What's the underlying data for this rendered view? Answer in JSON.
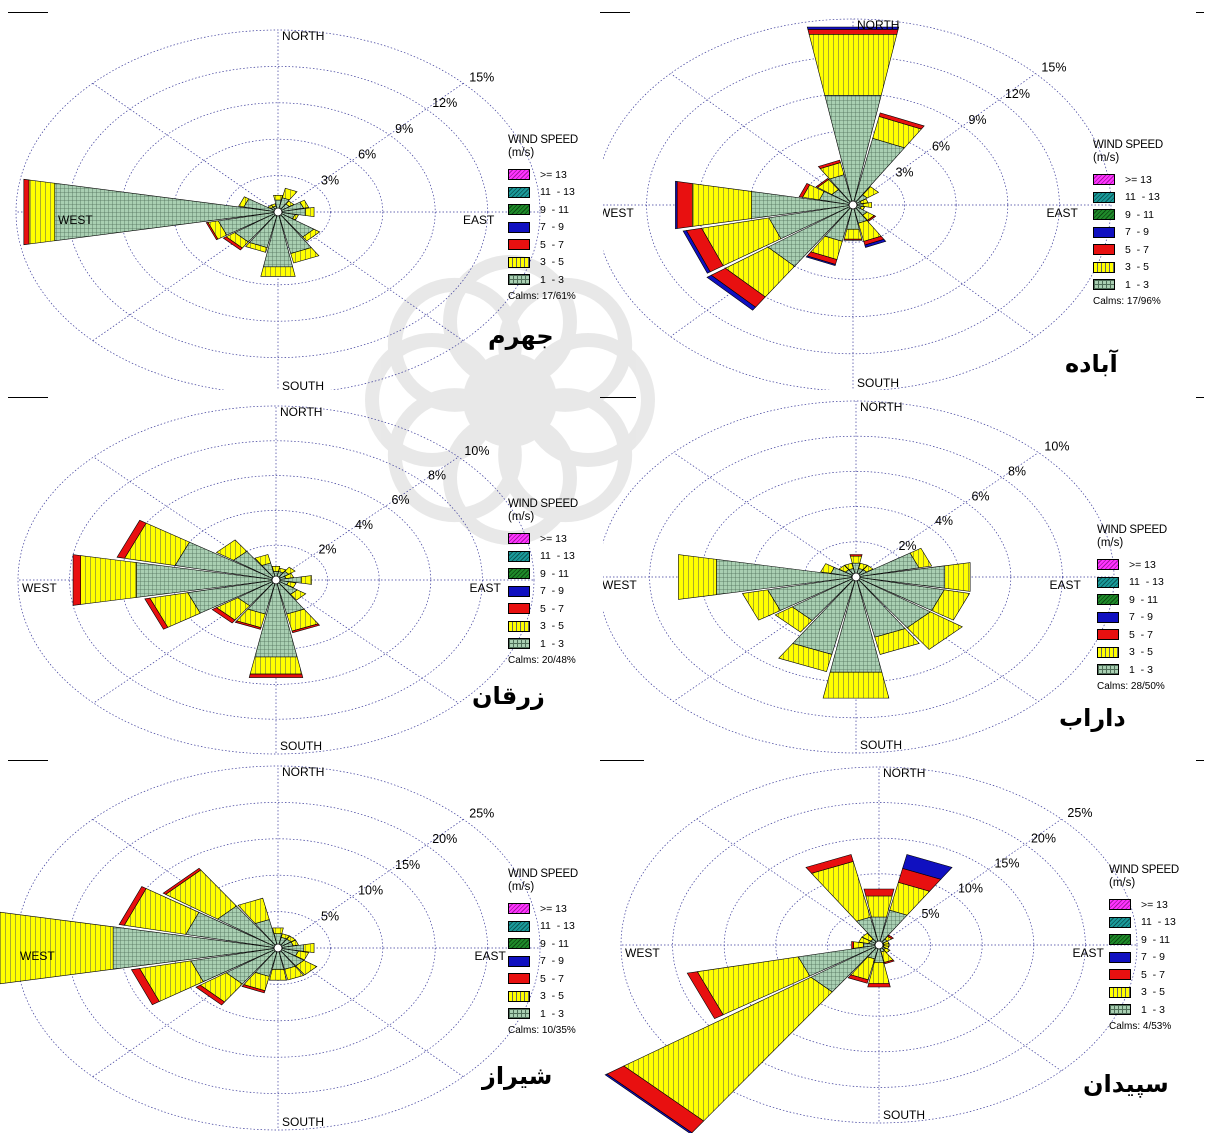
{
  "legend": {
    "title": "WIND SPEED",
    "unit": "(m/s)",
    "bins": [
      {
        "label": ">= 13",
        "color": "#ff33ff",
        "pattern": "diag-magenta"
      },
      {
        "label": "11  - 13",
        "color": "#1a9a9a",
        "pattern": "diag-teal"
      },
      {
        "label": "9  - 11",
        "color": "#1f8a2a",
        "pattern": "diag-green"
      },
      {
        "label": "7  - 9",
        "color": "#1010c0",
        "pattern": "solid-blue"
      },
      {
        "label": "5  - 7",
        "color": "#e81010",
        "pattern": "solid-red"
      },
      {
        "label": "3  - 5",
        "color": "#ffff00",
        "pattern": "vstripe-yellow"
      },
      {
        "label": "1  - 3",
        "color": "#9fc9a9",
        "pattern": "grid-gray"
      }
    ]
  },
  "compass": {
    "north": "NORTH",
    "south": "SOUTH",
    "east": "EAST",
    "west": "WEST"
  },
  "chart_data": [
    {
      "type": "windrose",
      "station": "جهرم",
      "calms": "Calms: 17/61%",
      "ring_labels": [
        "3%",
        "6%",
        "9%",
        "12%",
        "15%"
      ],
      "max_pct": 15,
      "directions": [
        0,
        22.5,
        45,
        67.5,
        90,
        112.5,
        135,
        157.5,
        180,
        202.5,
        225,
        247.5,
        270,
        292.5,
        315,
        337.5
      ],
      "bins": {
        "1-3": [
          1.0,
          1.2,
          0.8,
          1.5,
          1.6,
          1.0,
          2.5,
          3.5,
          4.6,
          3.0,
          3.0,
          3.5,
          13.0,
          2.0,
          0.5,
          0.5
        ],
        "3-5": [
          0.4,
          0.8,
          0.3,
          0.3,
          0.5,
          0.2,
          0.4,
          0.8,
          0.8,
          0.4,
          0.6,
          0.6,
          1.5,
          0.3,
          0.2,
          0.2
        ],
        "5-7": [
          0,
          0,
          0,
          0,
          0,
          0,
          0,
          0,
          0,
          0,
          0.2,
          0.1,
          0.3,
          0,
          0,
          0
        ]
      }
    },
    {
      "type": "windrose",
      "station": "آباده",
      "calms": "Calms: 17/96%",
      "ring_labels": [
        "3%",
        "6%",
        "9%",
        "12%",
        "15%"
      ],
      "max_pct": 15,
      "directions": [
        0,
        22.5,
        45,
        67.5,
        90,
        112.5,
        135,
        157.5,
        180,
        202.5,
        225,
        247.5,
        270,
        292.5,
        315,
        337.5
      ],
      "bins": {
        "1-3": [
          9.0,
          5.5,
          1.0,
          0.5,
          0.6,
          0.5,
          1.0,
          1.5,
          2.0,
          3.0,
          6.0,
          5.0,
          6.0,
          2.0,
          1.5,
          2.5
        ],
        "3-5": [
          5.0,
          1.8,
          0.8,
          0.4,
          0.5,
          0.2,
          0.5,
          1.5,
          0.8,
          1.5,
          3.0,
          4.0,
          3.5,
          1.0,
          1.0,
          1.0
        ],
        "5-7": [
          0.4,
          0.3,
          0,
          0,
          0,
          0,
          0.1,
          0.3,
          0.1,
          0.4,
          1.0,
          0.9,
          0.9,
          0.2,
          0.1,
          0.2
        ],
        "7-9": [
          0.2,
          0,
          0,
          0,
          0,
          0,
          0,
          0.2,
          0,
          0.1,
          0.3,
          0.2,
          0.1,
          0,
          0,
          0
        ]
      }
    },
    {
      "type": "windrose",
      "station": "زرقان",
      "calms": "Calms: 20/48%",
      "ring_labels": [
        "2%",
        "4%",
        "6%",
        "8%",
        "10%"
      ],
      "max_pct": 10,
      "directions": [
        0,
        22.5,
        45,
        67.5,
        90,
        112.5,
        135,
        157.5,
        180,
        202.5,
        225,
        247.5,
        270,
        292.5,
        315,
        337.5
      ],
      "bins": {
        "1-3": [
          0.5,
          0.5,
          0.6,
          0.4,
          1.0,
          0.5,
          1.0,
          2.0,
          4.5,
          2.0,
          1.8,
          3.5,
          5.5,
          4.0,
          2.0,
          1.0
        ],
        "3-5": [
          0.3,
          0.2,
          0.3,
          0.3,
          0.4,
          0.3,
          0.4,
          1.0,
          1.0,
          0.8,
          1.0,
          1.5,
          2.2,
          2.0,
          0.8,
          0.5
        ],
        "5-7": [
          0,
          0,
          0,
          0,
          0,
          0,
          0,
          0.1,
          0.2,
          0.1,
          0.2,
          0.2,
          0.3,
          0.3,
          0,
          0
        ]
      }
    },
    {
      "type": "windrose",
      "station": "داراب",
      "calms": "Calms: 28/50%",
      "ring_labels": [
        "2%",
        "4%",
        "6%",
        "8%",
        "10%"
      ],
      "max_pct": 10,
      "directions": [
        0,
        22.5,
        45,
        67.5,
        90,
        112.5,
        135,
        157.5,
        180,
        202.5,
        225,
        247.5,
        270,
        292.5,
        315,
        337.5
      ],
      "bins": {
        "1-3": [
          0.8,
          0.5,
          0.5,
          2.5,
          3.5,
          3.5,
          3.5,
          3.5,
          5.5,
          4.5,
          3.0,
          3.5,
          5.5,
          1.0,
          0.5,
          0.5
        ],
        "3-5": [
          0.4,
          0.3,
          0.3,
          0.5,
          1.0,
          1.0,
          1.5,
          1.0,
          1.5,
          1.0,
          0.8,
          1.0,
          1.5,
          0.4,
          0.3,
          0.3
        ],
        "5-7": [
          0.1,
          0,
          0,
          0,
          0,
          0,
          0,
          0,
          0,
          0,
          0,
          0,
          0,
          0,
          0,
          0
        ]
      }
    },
    {
      "type": "windrose",
      "station": "شیراز",
      "calms": "Calms: 10/35%",
      "ring_labels": [
        "5%",
        "10%",
        "15%",
        "20%",
        "25%"
      ],
      "max_pct": 25,
      "directions": [
        0,
        22.5,
        45,
        67.5,
        90,
        112.5,
        135,
        157.5,
        180,
        202.5,
        225,
        247.5,
        270,
        292.5,
        315,
        337.5
      ],
      "bins": {
        "1-3": [
          2.0,
          1.5,
          1.5,
          1.5,
          2.5,
          2.0,
          3.0,
          3.0,
          3.0,
          4.0,
          6.0,
          8.5,
          16.0,
          9.0,
          7.0,
          4.0
        ],
        "3-5": [
          0.8,
          0.5,
          0.5,
          0.5,
          1.0,
          1.0,
          1.5,
          1.5,
          1.5,
          2.0,
          3.0,
          5.0,
          11.0,
          6.0,
          6.0,
          3.0
        ],
        "5-7": [
          0,
          0,
          0,
          0,
          0,
          0,
          0,
          0,
          0,
          0.3,
          0.5,
          0.8,
          2.0,
          0.5,
          0.3,
          0
        ]
      }
    },
    {
      "type": "windrose",
      "station": "سپیدان",
      "calms": "Calms: 4/53%",
      "ring_labels": [
        "5%",
        "10%",
        "15%",
        "20%",
        "25%"
      ],
      "max_pct": 25,
      "directions": [
        0,
        22.5,
        45,
        67.5,
        90,
        112.5,
        135,
        157.5,
        180,
        202.5,
        225,
        247.5,
        270,
        292.5,
        315,
        337.5
      ],
      "bins": {
        "1-3": [
          4.0,
          5.0,
          1.0,
          0.5,
          0.5,
          0.5,
          0.8,
          1.0,
          2.5,
          2.0,
          8.0,
          8.0,
          1.5,
          1.0,
          1.0,
          4.0
        ],
        "3-5": [
          3.0,
          4.0,
          0.5,
          0.5,
          0.5,
          0.5,
          0.5,
          1.5,
          3.0,
          3.0,
          22.0,
          10.0,
          1.0,
          1.0,
          1.0,
          8.0
        ],
        "5-7": [
          1.0,
          2.0,
          0.2,
          0,
          0,
          0,
          0,
          0.2,
          0.5,
          0.5,
          2.0,
          1.0,
          0.2,
          0,
          0,
          1.0
        ],
        "7-9": [
          0,
          2.0,
          0,
          0,
          0,
          0,
          0,
          0,
          0,
          0,
          0.2,
          0,
          0,
          0,
          0,
          0
        ]
      }
    }
  ]
}
